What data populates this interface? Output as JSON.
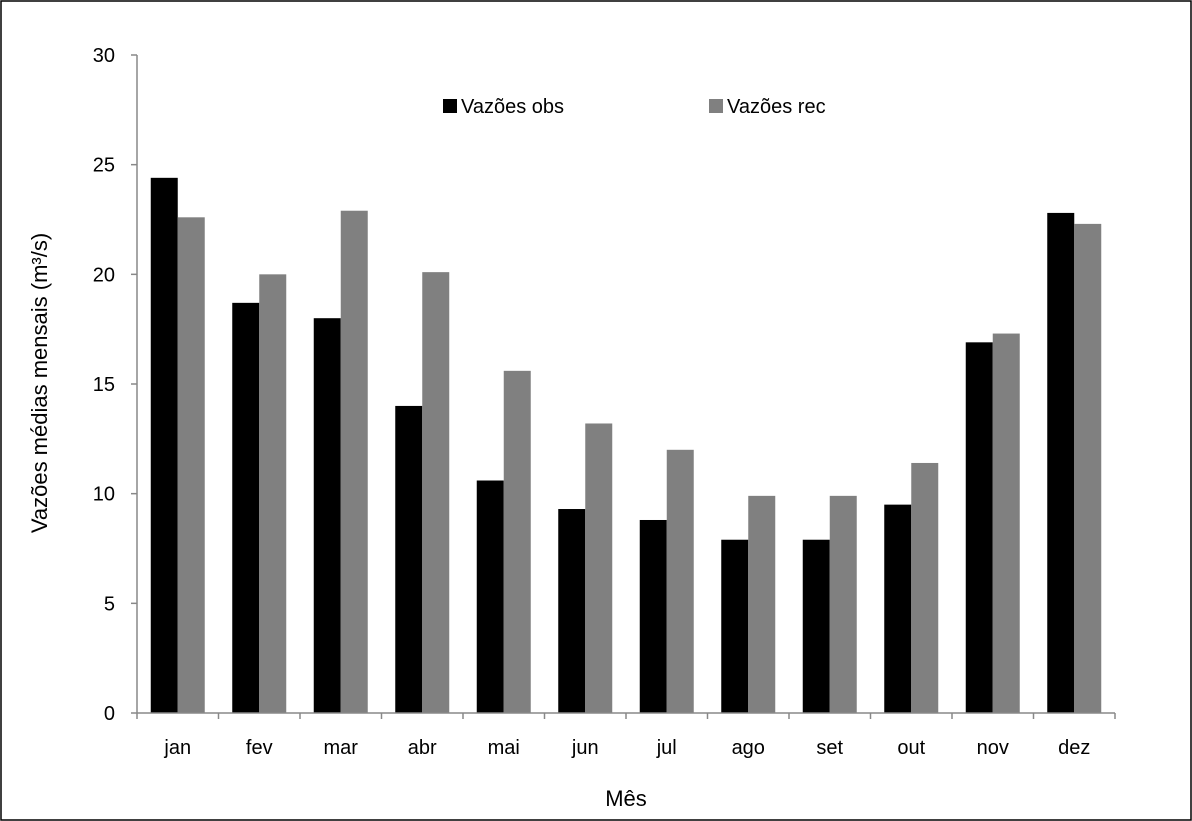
{
  "chart_data": {
    "type": "bar",
    "title": "",
    "xlabel": "Mês",
    "ylabel": "Vazões médias mensais (m³/s)",
    "categories": [
      "jan",
      "fev",
      "mar",
      "abr",
      "mai",
      "jun",
      "jul",
      "ago",
      "set",
      "out",
      "nov",
      "dez"
    ],
    "series": [
      {
        "name": "Vazões obs",
        "color": "#000000",
        "values": [
          24.4,
          18.7,
          18.0,
          14.0,
          10.6,
          9.3,
          8.8,
          7.9,
          7.9,
          9.5,
          16.9,
          22.8
        ]
      },
      {
        "name": "Vazões rec",
        "color": "#808080",
        "values": [
          22.6,
          20.0,
          22.9,
          20.1,
          15.6,
          13.2,
          12.0,
          9.9,
          9.9,
          11.4,
          17.3,
          22.3
        ]
      }
    ],
    "ylim": [
      0,
      30
    ],
    "yticks": [
      "0",
      "5",
      "10",
      "15",
      "20",
      "25",
      "30"
    ],
    "grid": false,
    "legend_position": "top"
  }
}
